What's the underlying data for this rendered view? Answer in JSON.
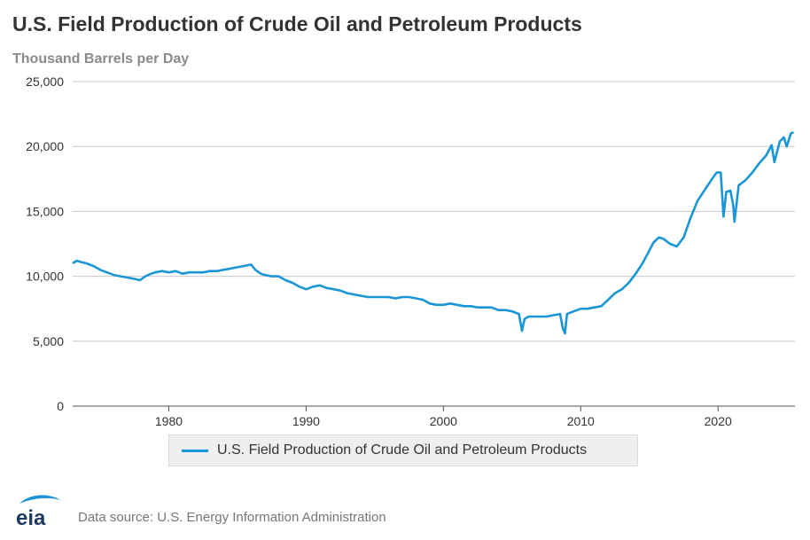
{
  "chart_data": {
    "type": "line",
    "title": "U.S. Field Production of Crude Oil and Petroleum Products",
    "subtitle": "Thousand Barrels per Day",
    "xlabel": "",
    "ylabel": "",
    "xlim": [
      1973,
      2025.6
    ],
    "ylim": [
      0,
      25000
    ],
    "x_ticks": [
      1980,
      1990,
      2000,
      2010,
      2020
    ],
    "y_ticks": [
      0,
      5000,
      10000,
      15000,
      20000,
      25000
    ],
    "y_tick_labels": [
      "0",
      "5,000",
      "10,000",
      "15,000",
      "20,000",
      "25,000"
    ],
    "grid": true,
    "legend_position": "bottom",
    "color": "#1a96d6",
    "series": [
      {
        "name": "U.S. Field Production of Crude Oil and Petroleum Products",
        "x": [
          1973.0,
          1973.3,
          1973.6,
          1974.0,
          1974.5,
          1975.0,
          1975.5,
          1976.0,
          1976.5,
          1977.0,
          1977.5,
          1977.9,
          1978.3,
          1978.7,
          1979.0,
          1979.5,
          1980.0,
          1980.5,
          1981.0,
          1981.5,
          1982.0,
          1982.5,
          1983.0,
          1983.5,
          1984.0,
          1984.5,
          1985.0,
          1985.5,
          1986.0,
          1986.3,
          1986.7,
          1987.0,
          1987.5,
          1988.0,
          1988.5,
          1989.0,
          1989.5,
          1990.0,
          1990.5,
          1991.0,
          1991.5,
          1992.0,
          1992.5,
          1993.0,
          1993.5,
          1994.0,
          1994.5,
          1995.0,
          1995.5,
          1996.0,
          1996.5,
          1997.0,
          1997.5,
          1998.0,
          1998.5,
          1999.0,
          1999.5,
          2000.0,
          2000.5,
          2001.0,
          2001.5,
          2002.0,
          2002.5,
          2003.0,
          2003.5,
          2004.0,
          2004.5,
          2005.0,
          2005.5,
          2005.72,
          2005.9,
          2006.2,
          2006.5,
          2007.0,
          2007.5,
          2008.0,
          2008.5,
          2008.7,
          2008.85,
          2009.0,
          2009.5,
          2010.0,
          2010.5,
          2011.0,
          2011.5,
          2012.0,
          2012.5,
          2013.0,
          2013.5,
          2014.0,
          2014.5,
          2015.0,
          2015.3,
          2015.7,
          2016.0,
          2016.5,
          2017.0,
          2017.5,
          2018.0,
          2018.5,
          2019.0,
          2019.5,
          2019.9,
          2020.2,
          2020.4,
          2020.6,
          2020.9,
          2021.1,
          2021.2,
          2021.5,
          2022.0,
          2022.5,
          2023.0,
          2023.5,
          2023.9,
          2024.1,
          2024.5,
          2024.8,
          2025.0,
          2025.3,
          2025.5
        ],
        "values": [
          11000,
          11200,
          11100,
          11000,
          10800,
          10500,
          10300,
          10100,
          10000,
          9900,
          9800,
          9700,
          10000,
          10200,
          10300,
          10400,
          10300,
          10400,
          10200,
          10300,
          10300,
          10300,
          10400,
          10400,
          10500,
          10600,
          10700,
          10800,
          10900,
          10500,
          10200,
          10100,
          10000,
          10000,
          9700,
          9500,
          9200,
          9000,
          9200,
          9300,
          9100,
          9000,
          8900,
          8700,
          8600,
          8500,
          8400,
          8400,
          8400,
          8400,
          8300,
          8400,
          8400,
          8300,
          8200,
          7900,
          7800,
          7800,
          7900,
          7800,
          7700,
          7700,
          7600,
          7600,
          7600,
          7400,
          7400,
          7300,
          7100,
          5800,
          6700,
          6900,
          6900,
          6900,
          6900,
          7000,
          7100,
          6000,
          5600,
          7100,
          7300,
          7500,
          7500,
          7600,
          7700,
          8200,
          8700,
          9000,
          9500,
          10200,
          11000,
          12000,
          12600,
          13000,
          12900,
          12500,
          12300,
          13000,
          14500,
          15800,
          16600,
          17400,
          18000,
          18000,
          14600,
          16500,
          16600,
          15500,
          14200,
          17000,
          17400,
          18000,
          18700,
          19300,
          20100,
          18800,
          20400,
          20700,
          20000,
          21000,
          21100
        ]
      }
    ]
  },
  "legend": {
    "label": "U.S. Field Production of Crude Oil and Petroleum Products"
  },
  "footer": {
    "logo_text": "eia",
    "source": "Data source: U.S. Energy Information Administration"
  }
}
